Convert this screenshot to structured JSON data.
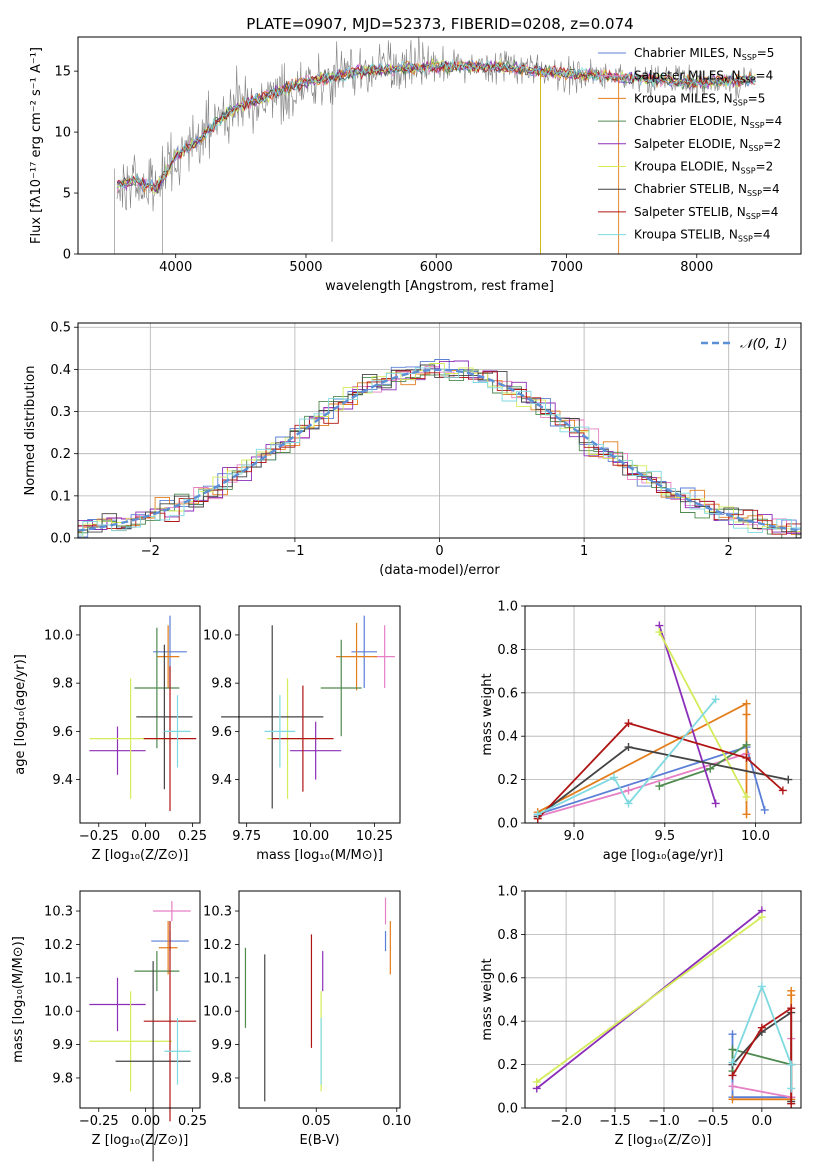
{
  "figure": {
    "title": "PLATE=0907, MJD=52373, FIBERID=0208, z=0.074"
  },
  "chart_data": [
    {
      "id": "spectrum",
      "type": "line",
      "title": "PLATE=0907, MJD=52373, FIBERID=0208, z=0.074",
      "xlabel": "wavelength [Angstrom, rest frame]",
      "ylabel": "Flux [fλ10⁻¹⁷ erg cm⁻² s⁻¹ A⁻¹]",
      "xlim": [
        3250,
        8800
      ],
      "ylim": [
        0,
        17.8
      ],
      "xticks": [
        4000,
        5000,
        6000,
        7000,
        8000
      ],
      "yticks": [
        0,
        5,
        10,
        15
      ],
      "grid": false,
      "legend_position": "right",
      "legend": [
        {
          "label": "Chabrier MILES, N",
          "sub": "SSP",
          "tail": "=5",
          "color": "#5b7fd6"
        },
        {
          "label": "Salpeter MILES, N",
          "sub": "SSP",
          "tail": "=4",
          "color": "#e67fc4"
        },
        {
          "label": "Kroupa MILES, N",
          "sub": "SSP",
          "tail": "=5",
          "color": "#e47d1b"
        },
        {
          "label": "Chabrier ELODIE, N",
          "sub": "SSP",
          "tail": "=4",
          "color": "#4f8a4f"
        },
        {
          "label": "Salpeter ELODIE, N",
          "sub": "SSP",
          "tail": "=2",
          "color": "#8b2fb8"
        },
        {
          "label": "Kroupa ELODIE, N",
          "sub": "SSP",
          "tail": "=2",
          "color": "#d4ec5a"
        },
        {
          "label": "Chabrier STELIB, N",
          "sub": "SSP",
          "tail": "=4",
          "color": "#444444"
        },
        {
          "label": "Salpeter STELIB, N",
          "sub": "SSP",
          "tail": "=4",
          "color": "#b01515"
        },
        {
          "label": "Kroupa STELIB, N",
          "sub": "SSP",
          "tail": "=4",
          "color": "#7fd9e0"
        }
      ],
      "continuum_x": [
        3550,
        3700,
        3850,
        4000,
        4200,
        4400,
        4600,
        4800,
        5000,
        5200,
        5400,
        5600,
        5800,
        6000,
        6200,
        6400,
        6600,
        6800,
        7000,
        7200,
        7400,
        7600,
        7800,
        8000,
        8200,
        8400
      ],
      "continuum_y": [
        5.6,
        6.0,
        5.4,
        8.0,
        9.6,
        11.6,
        12.6,
        13.4,
        14.2,
        14.5,
        15.0,
        15.1,
        15.3,
        15.4,
        15.4,
        15.4,
        15.2,
        15.0,
        14.8,
        14.7,
        14.5,
        14.4,
        14.2,
        14.0,
        14.2,
        14.3
      ],
      "data_color": "#808080",
      "model_color": "#7fd9e0"
    },
    {
      "id": "residuals",
      "type": "histogram",
      "xlabel": "(data-model)/error",
      "ylabel": "Normed distribution",
      "xlim": [
        -2.5,
        2.5
      ],
      "ylim": [
        0,
        0.51
      ],
      "xticks": [
        -2,
        -1,
        0,
        1,
        2
      ],
      "xticklabels": [
        "−2",
        "−1",
        "0",
        "1",
        "2"
      ],
      "yticks": [
        0.0,
        0.1,
        0.2,
        0.3,
        0.4,
        0.5
      ],
      "grid": true,
      "legend_position": "top-right",
      "reference_label": "𝒩(0, 1)",
      "reference_color": "#5b8fd6",
      "bin_width": 0.1
    },
    {
      "id": "age-vs-Z",
      "type": "errorbar",
      "xlabel": "Z [log₁₀(Z/Z⊙)]",
      "ylabel": "age  [log₁₀(age/yr)]",
      "xlim": [
        -0.35,
        0.29
      ],
      "ylim": [
        9.22,
        10.12
      ],
      "xticks": [
        -0.25,
        0.0,
        0.25
      ],
      "xticklabels": [
        "−0.25",
        "0.00",
        "0.25"
      ],
      "yticks": [
        9.4,
        9.6,
        9.8,
        10.0
      ],
      "points": [
        {
          "x": 0.13,
          "y": 9.93,
          "xerr": 0.09,
          "yerr": 0.15,
          "color": "#5b7fd6"
        },
        {
          "x": 0.12,
          "y": 9.91,
          "xerr": 0.06,
          "yerr": 0.13,
          "color": "#e47d1b"
        },
        {
          "x": 0.06,
          "y": 9.78,
          "xerr": 0.12,
          "yerr": 0.25,
          "color": "#4f8a4f"
        },
        {
          "x": -0.15,
          "y": 9.52,
          "xerr": 0.15,
          "yerr": 0.1,
          "color": "#8b2fb8"
        },
        {
          "x": -0.08,
          "y": 9.57,
          "xerr": 0.22,
          "yerr": 0.25,
          "color": "#d4ec5a"
        },
        {
          "x": 0.1,
          "y": 9.66,
          "xerr": 0.15,
          "yerr": 0.3,
          "color": "#444444"
        },
        {
          "x": 0.13,
          "y": 9.57,
          "xerr": 0.14,
          "yerr": 0.3,
          "color": "#b01515"
        },
        {
          "x": 0.17,
          "y": 9.6,
          "xerr": 0.07,
          "yerr": 0.15,
          "color": "#7fd9e0"
        }
      ]
    },
    {
      "id": "age-vs-mass",
      "type": "errorbar",
      "xlabel": "mass [log₁₀(M/M⊙)]",
      "ylabel": "",
      "xlim": [
        9.72,
        10.35
      ],
      "ylim": [
        9.22,
        10.12
      ],
      "xticks": [
        9.75,
        10.0,
        10.25
      ],
      "xticklabels": [
        "9.75",
        "10.00",
        "10.25"
      ],
      "yticks": [
        9.4,
        9.6,
        9.8,
        10.0
      ],
      "points": [
        {
          "x": 10.21,
          "y": 9.93,
          "xerr": 0.05,
          "yerr": 0.15,
          "color": "#5b7fd6"
        },
        {
          "x": 10.29,
          "y": 9.91,
          "xerr": 0.04,
          "yerr": 0.13,
          "color": "#e67fc4"
        },
        {
          "x": 10.18,
          "y": 9.91,
          "xerr": 0.08,
          "yerr": 0.14,
          "color": "#e47d1b"
        },
        {
          "x": 10.12,
          "y": 9.78,
          "xerr": 0.08,
          "yerr": 0.2,
          "color": "#4f8a4f"
        },
        {
          "x": 10.02,
          "y": 9.52,
          "xerr": 0.1,
          "yerr": 0.12,
          "color": "#8b2fb8"
        },
        {
          "x": 9.91,
          "y": 9.57,
          "xerr": 0.08,
          "yerr": 0.25,
          "color": "#d4ec5a"
        },
        {
          "x": 9.85,
          "y": 9.66,
          "xerr": 0.2,
          "yerr": 0.38,
          "color": "#444444"
        },
        {
          "x": 9.97,
          "y": 9.57,
          "xerr": 0.12,
          "yerr": 0.22,
          "color": "#b01515"
        },
        {
          "x": 9.88,
          "y": 9.6,
          "xerr": 0.06,
          "yerr": 0.15,
          "color": "#7fd9e0"
        }
      ]
    },
    {
      "id": "weight-vs-age",
      "type": "line",
      "xlabel": "age  [log₁₀(age/yr)]",
      "ylabel": "mass weight",
      "xlim": [
        8.73,
        10.25
      ],
      "ylim": [
        0,
        1.0
      ],
      "xticks": [
        9.0,
        9.5,
        10.0
      ],
      "xticklabels": [
        "9.0",
        "9.5",
        "10.0"
      ],
      "yticks": [
        0.0,
        0.2,
        0.4,
        0.6,
        0.8,
        1.0
      ],
      "grid": true,
      "series": [
        {
          "color": "#5b7fd6",
          "x": [
            8.8,
            9.95,
            10.05
          ],
          "y": [
            0.04,
            0.35,
            0.06
          ]
        },
        {
          "color": "#e67fc4",
          "x": [
            8.8,
            9.3,
            9.95
          ],
          "y": [
            0.03,
            0.15,
            0.32
          ]
        },
        {
          "color": "#e47d1b",
          "x": [
            8.8,
            9.95,
            9.95,
            9.95
          ],
          "y": [
            0.05,
            0.55,
            0.5,
            0.04
          ]
        },
        {
          "color": "#4f8a4f",
          "x": [
            9.47,
            9.75,
            9.95
          ],
          "y": [
            0.17,
            0.25,
            0.36
          ]
        },
        {
          "color": "#8b2fb8",
          "x": [
            9.47,
            9.78
          ],
          "y": [
            0.91,
            0.09
          ]
        },
        {
          "color": "#d4ec5a",
          "x": [
            9.47,
            9.95
          ],
          "y": [
            0.88,
            0.12
          ]
        },
        {
          "color": "#444444",
          "x": [
            8.8,
            9.3,
            10.18
          ],
          "y": [
            0.03,
            0.35,
            0.2
          ]
        },
        {
          "color": "#b01515",
          "x": [
            8.8,
            9.3,
            9.95,
            10.15
          ],
          "y": [
            0.02,
            0.46,
            0.3,
            0.15
          ]
        },
        {
          "color": "#7fd9e0",
          "x": [
            8.8,
            9.22,
            9.3,
            9.78
          ],
          "y": [
            0.04,
            0.21,
            0.09,
            0.57
          ]
        }
      ]
    },
    {
      "id": "mass-vs-Z",
      "type": "errorbar",
      "xlabel": "Z [log₁₀(Z/Z⊙)]",
      "ylabel": "mass [log₁₀(M/M⊙)]",
      "xlim": [
        -0.35,
        0.29
      ],
      "ylim": [
        9.71,
        10.36
      ],
      "xticks": [
        -0.25,
        0.0,
        0.25
      ],
      "xticklabels": [
        "−0.25",
        "0.00",
        "0.25"
      ],
      "yticks": [
        9.8,
        9.9,
        10.0,
        10.1,
        10.2,
        10.3
      ],
      "points": [
        {
          "x": 0.13,
          "y": 10.21,
          "xerr": 0.1,
          "yerr": 0.03,
          "color": "#5b7fd6"
        },
        {
          "x": 0.14,
          "y": 10.3,
          "xerr": 0.1,
          "yerr": 0.03,
          "color": "#e67fc4"
        },
        {
          "x": 0.12,
          "y": 10.19,
          "xerr": 0.05,
          "yerr": 0.08,
          "color": "#e47d1b"
        },
        {
          "x": 0.06,
          "y": 10.12,
          "xerr": 0.12,
          "yerr": 0.06,
          "color": "#4f8a4f"
        },
        {
          "x": -0.15,
          "y": 10.02,
          "xerr": 0.15,
          "yerr": 0.08,
          "color": "#8b2fb8"
        },
        {
          "x": -0.08,
          "y": 9.91,
          "xerr": 0.22,
          "yerr": 0.15,
          "color": "#d4ec5a"
        },
        {
          "x": 0.04,
          "y": 9.85,
          "xerr": 0.2,
          "yerr": 0.3,
          "color": "#444444"
        },
        {
          "x": 0.13,
          "y": 9.97,
          "xerr": 0.14,
          "yerr": 0.3,
          "color": "#b01515"
        },
        {
          "x": 0.17,
          "y": 9.88,
          "xerr": 0.07,
          "yerr": 0.1,
          "color": "#7fd9e0"
        }
      ]
    },
    {
      "id": "mass-vs-ebv",
      "type": "errorbar",
      "xlabel": "E(B-V)",
      "ylabel": "",
      "xlim": [
        0.002,
        0.102
      ],
      "ylim": [
        9.71,
        10.36
      ],
      "xticks": [
        0.05,
        0.1
      ],
      "xticklabels": [
        "0.05",
        "0.10"
      ],
      "yticks": [
        9.8,
        9.9,
        10.0,
        10.1,
        10.2,
        10.3
      ],
      "points": [
        {
          "x": 0.093,
          "y": 10.21,
          "yerr": 0.03,
          "color": "#5b7fd6"
        },
        {
          "x": 0.093,
          "y": 10.3,
          "yerr": 0.04,
          "color": "#e67fc4"
        },
        {
          "x": 0.096,
          "y": 10.19,
          "yerr": 0.08,
          "color": "#e47d1b"
        },
        {
          "x": 0.006,
          "y": 10.07,
          "yerr": 0.12,
          "color": "#4f8a4f"
        },
        {
          "x": 0.054,
          "y": 10.12,
          "yerr": 0.06,
          "color": "#8b2fb8"
        },
        {
          "x": 0.053,
          "y": 9.91,
          "yerr": 0.15,
          "color": "#d4ec5a"
        },
        {
          "x": 0.018,
          "y": 9.95,
          "yerr": 0.22,
          "color": "#444444"
        },
        {
          "x": 0.047,
          "y": 10.06,
          "yerr": 0.17,
          "color": "#b01515"
        },
        {
          "x": 0.053,
          "y": 9.88,
          "yerr": 0.1,
          "color": "#7fd9e0"
        }
      ]
    },
    {
      "id": "weight-vs-Z",
      "type": "line",
      "xlabel": "Z [log₁₀(Z/Z⊙)]",
      "ylabel": "mass weight",
      "xlim": [
        -2.42,
        0.4
      ],
      "ylim": [
        0,
        1.0
      ],
      "xticks": [
        -2.0,
        -1.5,
        -1.0,
        -0.5,
        0.0
      ],
      "xticklabels": [
        "−2.0",
        "−1.5",
        "−1.0",
        "−0.5",
        "0.0"
      ],
      "yticks": [
        0.0,
        0.2,
        0.4,
        0.6,
        0.8,
        1.0
      ],
      "grid": true,
      "series": [
        {
          "color": "#5b7fd6",
          "x": [
            -0.3,
            -0.3,
            0.3
          ],
          "y": [
            0.34,
            0.05,
            0.05
          ]
        },
        {
          "color": "#e67fc4",
          "x": [
            -0.3,
            0.3,
            0.3
          ],
          "y": [
            0.1,
            0.05,
            0.32
          ]
        },
        {
          "color": "#e47d1b",
          "x": [
            -0.3,
            0.3,
            0.3,
            0.3
          ],
          "y": [
            0.04,
            0.04,
            0.52,
            0.54
          ]
        },
        {
          "color": "#4f8a4f",
          "x": [
            -0.3,
            -0.3,
            0.3
          ],
          "y": [
            0.17,
            0.27,
            0.2
          ]
        },
        {
          "color": "#8b2fb8",
          "x": [
            -2.3,
            0.0
          ],
          "y": [
            0.09,
            0.91
          ]
        },
        {
          "color": "#d4ec5a",
          "x": [
            -2.3,
            0.0
          ],
          "y": [
            0.12,
            0.88
          ]
        },
        {
          "color": "#444444",
          "x": [
            -0.3,
            0.0,
            0.3,
            0.3
          ],
          "y": [
            0.2,
            0.35,
            0.44,
            0.03
          ]
        },
        {
          "color": "#b01515",
          "x": [
            -0.3,
            0.0,
            0.3,
            0.3
          ],
          "y": [
            0.15,
            0.37,
            0.46,
            0.02
          ]
        },
        {
          "color": "#7fd9e0",
          "x": [
            -0.3,
            0.0,
            0.3,
            0.3
          ],
          "y": [
            0.21,
            0.56,
            0.2,
            0.09
          ]
        }
      ]
    }
  ]
}
